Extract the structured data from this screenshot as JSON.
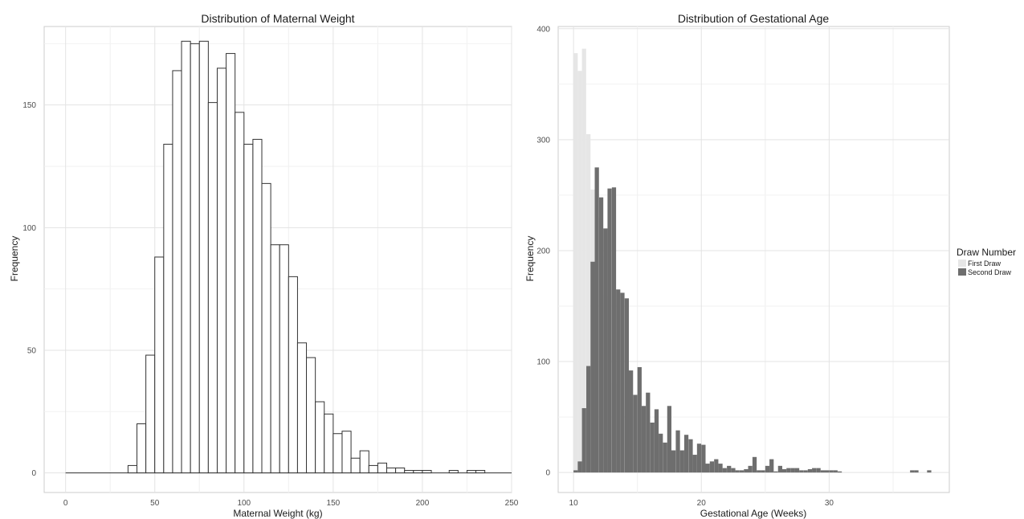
{
  "chart_data": [
    {
      "type": "bar",
      "title": "Distribution of Maternal Weight",
      "xlabel": "Maternal Weight (kg)",
      "ylabel": "Frequency",
      "xlim": [
        -12,
        250
      ],
      "ylim": [
        -8,
        182
      ],
      "xticks": [
        0,
        50,
        100,
        150,
        200,
        250
      ],
      "yticks": [
        0,
        50,
        100,
        150
      ],
      "grid": true,
      "bin_width": 5,
      "baseline_range": [
        0,
        250
      ],
      "series": [
        {
          "bin_starts": [
            35,
            40,
            45,
            50,
            55,
            60,
            65,
            70,
            75,
            80,
            85,
            90,
            95,
            100,
            105,
            110,
            115,
            120,
            125,
            130,
            135,
            140,
            145,
            150,
            155,
            160,
            165,
            170,
            175,
            180,
            185,
            190,
            195,
            200,
            215,
            225,
            230
          ],
          "values": [
            3,
            20,
            48,
            88,
            134,
            164,
            176,
            175,
            176,
            151,
            165,
            171,
            147,
            134,
            136,
            118,
            93,
            93,
            80,
            53,
            47,
            29,
            24,
            16,
            17,
            6,
            9,
            3,
            4,
            2,
            2,
            1,
            1,
            1,
            1,
            1,
            1
          ]
        }
      ],
      "colors": {
        "fill": "#ffffff",
        "stroke": "#333333"
      }
    },
    {
      "type": "bar",
      "title": "Distribution of Gestational Age",
      "xlabel": "Gestational Age (Weeks)",
      "ylabel": "Frequency",
      "xlim": [
        8.8,
        39.4
      ],
      "ylim": [
        -18,
        402
      ],
      "xticks": [
        10,
        20,
        30
      ],
      "yticks": [
        0,
        100,
        200,
        300,
        400
      ],
      "grid": true,
      "bin_width": 0.33,
      "legend": {
        "title": "Draw Number",
        "position": "right",
        "entries": [
          {
            "label": "First Draw",
            "color": "#e6e6e6"
          },
          {
            "label": "Second Draw",
            "color": "#6e6e6e"
          }
        ]
      },
      "series": [
        {
          "name": "First Draw",
          "color": "#e6e6e6",
          "bin_starts": [
            10.0,
            10.33,
            10.66,
            11.0,
            11.33,
            11.66,
            12.0,
            12.33,
            12.66,
            13.0
          ],
          "values": [
            378,
            362,
            382,
            305,
            255,
            230,
            195,
            160,
            120,
            80
          ]
        },
        {
          "name": "Second Draw",
          "color": "#6e6e6e",
          "bin_starts": [
            10.0,
            10.33,
            10.66,
            11.0,
            11.33,
            11.66,
            12.0,
            12.33,
            12.66,
            13.0,
            13.33,
            13.66,
            14.0,
            14.33,
            14.66,
            15.0,
            15.33,
            15.66,
            16.0,
            16.33,
            16.66,
            17.0,
            17.33,
            17.66,
            18.0,
            18.33,
            18.66,
            19.0,
            19.33,
            19.66,
            20.0,
            20.33,
            20.66,
            21.0,
            21.33,
            21.66,
            22.0,
            22.33,
            22.66,
            23.0,
            23.33,
            23.66,
            24.0,
            24.33,
            24.66,
            25.0,
            25.33,
            25.66,
            26.0,
            26.33,
            26.66,
            27.0,
            27.33,
            27.66,
            28.0,
            28.33,
            28.66,
            29.0,
            29.33,
            29.66,
            30.0,
            30.33,
            30.66,
            36.33,
            36.66,
            37.66
          ],
          "values": [
            2,
            10,
            58,
            96,
            190,
            275,
            248,
            220,
            256,
            257,
            165,
            162,
            157,
            92,
            70,
            95,
            60,
            72,
            45,
            57,
            35,
            27,
            60,
            20,
            38,
            20,
            34,
            30,
            16,
            26,
            25,
            8,
            10,
            12,
            8,
            4,
            6,
            4,
            2,
            2,
            3,
            6,
            14,
            2,
            2,
            6,
            12,
            1,
            6,
            3,
            4,
            4,
            4,
            2,
            2,
            3,
            4,
            4,
            2,
            2,
            2,
            2,
            1,
            2,
            2,
            2
          ]
        }
      ]
    }
  ]
}
